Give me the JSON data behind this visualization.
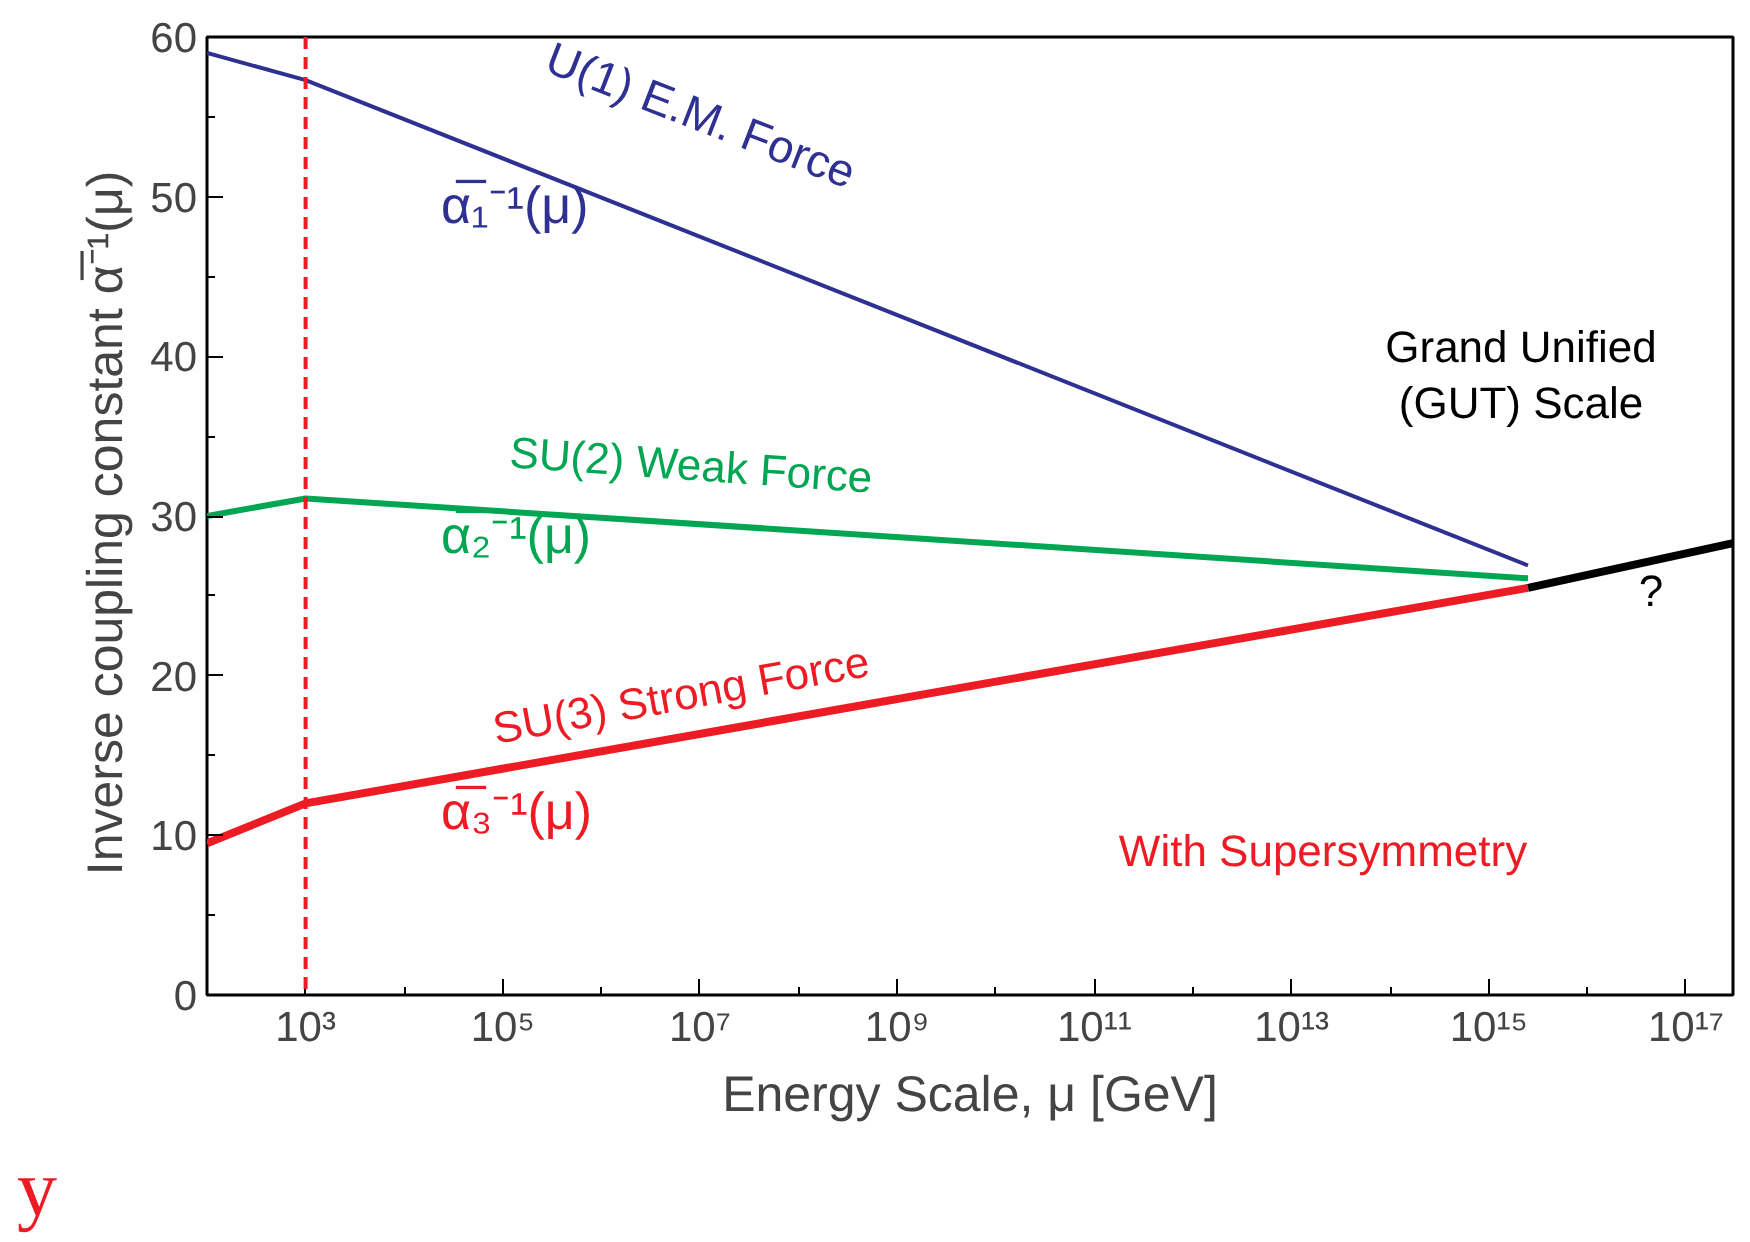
{
  "chart_data": {
    "type": "line",
    "xlabel": "Energy Scale, μ [GeV]",
    "ylabel": "Inverse coupling constant  α̅⁻¹(μ)",
    "log": "x",
    "xlim": [
      100,
      3e+17
    ],
    "ylim": [
      0,
      60
    ],
    "xticks": [
      {
        "value": 1000.0,
        "label": "10³"
      },
      {
        "value": 100000.0,
        "label": "10⁵"
      },
      {
        "value": 10000000.0,
        "label": "10⁷"
      },
      {
        "value": 1000000000.0,
        "label": "10⁹"
      },
      {
        "value": 100000000000.0,
        "label": "10¹¹"
      },
      {
        "value": 10000000000000.0,
        "label": "10¹³"
      },
      {
        "value": 1000000000000000.0,
        "label": "10¹⁵"
      },
      {
        "value": 1e+17,
        "label": "10¹⁷"
      }
    ],
    "yticks": [
      0,
      10,
      20,
      30,
      40,
      50,
      60
    ],
    "grid": false,
    "marker": "none",
    "line_style": "solid",
    "series": [
      {
        "color": "#2e3192",
        "x": [
          100,
          1000,
          2500000000000000.0
        ],
        "values": [
          59,
          57.3,
          26.9
        ]
      },
      {
        "color": "#00a651",
        "x": [
          100,
          1000,
          2500000000000000.0
        ],
        "values": [
          30.0,
          31.1,
          26.1
        ]
      },
      {
        "color": "#ed1c24",
        "x": [
          100,
          1000,
          2500000000000000.0
        ],
        "values": [
          9.5,
          12.0,
          25.5
        ]
      },
      {
        "color": "#000000",
        "x": [
          2500000000000000.0,
          3e+17
        ],
        "values": [
          25.5,
          28.3
        ]
      }
    ],
    "ref_lines": [
      {
        "axis": "x",
        "value": 1000,
        "color": "#ed1c24",
        "line_style": "dashed"
      }
    ],
    "annotations": [
      "U(1) E.M. Force",
      "α̅₁⁻¹(μ)",
      "SU(2) Weak Force",
      "α̅₂⁻¹(μ)",
      "SU(3) Strong Force",
      "α̅₃⁻¹(μ)",
      "Grand Unified\n(GUT) Scale",
      "?",
      "With Supersymmetry",
      "y"
    ]
  }
}
